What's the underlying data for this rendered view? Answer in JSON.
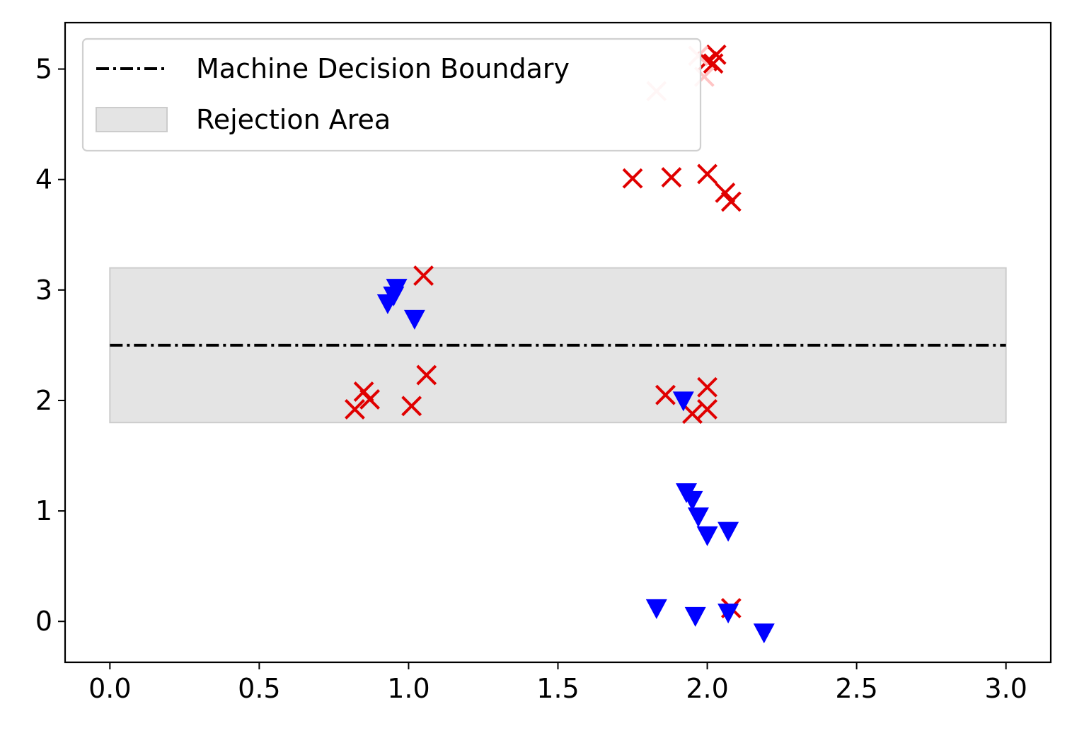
{
  "chart_data": {
    "type": "scatter",
    "title": "",
    "xlabel": "",
    "ylabel": "",
    "xlim": [
      -0.15,
      3.15
    ],
    "ylim": [
      -0.37,
      5.42
    ],
    "x_ticks": [
      0.0,
      0.5,
      1.0,
      1.5,
      2.0,
      2.5,
      3.0
    ],
    "x_tick_labels": [
      "0.0",
      "0.5",
      "1.0",
      "1.5",
      "2.0",
      "2.5",
      "3.0"
    ],
    "y_ticks": [
      0,
      1,
      2,
      3,
      4,
      5
    ],
    "y_tick_labels": [
      "0",
      "1",
      "2",
      "3",
      "4",
      "5"
    ],
    "grid": false,
    "legend_position": "top-left",
    "legend": [
      {
        "label": "Machine Decision Boundary",
        "kind": "line"
      },
      {
        "label": "Rejection Area",
        "kind": "patch"
      }
    ],
    "decision_boundary": {
      "y": 2.5,
      "x_range": [
        0,
        3
      ],
      "color": "#000000"
    },
    "rejection_area": {
      "y_range": [
        1.8,
        3.2
      ],
      "x_range": [
        0,
        3
      ],
      "color": "#e4e4e4",
      "edge_color": "#cccccc"
    },
    "series": [
      {
        "marker": "x",
        "color": "#e00000",
        "points": [
          [
            2.0,
            5.07
          ],
          [
            2.03,
            5.13
          ],
          [
            2.02,
            5.05
          ],
          [
            1.75,
            4.01
          ],
          [
            1.88,
            4.02
          ],
          [
            2.0,
            4.05
          ],
          [
            2.06,
            3.88
          ],
          [
            2.08,
            3.8
          ],
          [
            1.05,
            3.13
          ],
          [
            0.85,
            2.08
          ],
          [
            0.87,
            2.01
          ],
          [
            0.82,
            1.92
          ],
          [
            1.01,
            1.95
          ],
          [
            1.06,
            2.23
          ],
          [
            1.86,
            2.05
          ],
          [
            2.0,
            2.12
          ],
          [
            2.0,
            1.92
          ],
          [
            1.95,
            1.88
          ],
          [
            2.08,
            0.12
          ]
        ]
      },
      {
        "marker": "x",
        "color": "#ffc4c4",
        "points": [
          [
            1.83,
            4.8
          ],
          [
            1.97,
            5.12
          ],
          [
            1.99,
            4.93
          ]
        ]
      },
      {
        "marker": "triangle-down",
        "color": "#0000ff",
        "points": [
          [
            0.96,
            3.02
          ],
          [
            0.95,
            2.95
          ],
          [
            0.93,
            2.88
          ],
          [
            1.02,
            2.74
          ],
          [
            1.92,
            2.0
          ],
          [
            1.93,
            1.17
          ],
          [
            1.95,
            1.1
          ],
          [
            1.97,
            0.95
          ],
          [
            2.0,
            0.78
          ],
          [
            2.07,
            0.82
          ],
          [
            1.83,
            0.12
          ],
          [
            1.96,
            0.05
          ],
          [
            2.07,
            0.08
          ],
          [
            2.19,
            -0.1
          ]
        ]
      }
    ]
  }
}
